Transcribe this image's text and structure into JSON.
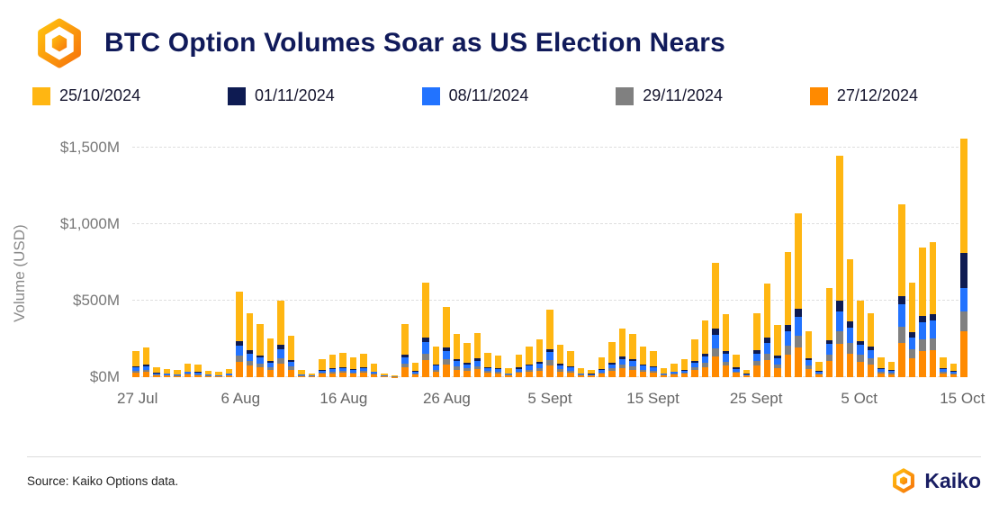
{
  "header": {
    "title": "BTC Option Volumes Soar as US Election Nears"
  },
  "icons": {
    "kaiko_logo": "hexagon-mark"
  },
  "colors": {
    "title": "#101A5A",
    "axis_text": "#777777",
    "gridline": "#dedede",
    "brand_orange": "#F7921E"
  },
  "legend": [
    {
      "label": "25/10/2024",
      "color": "#FFB612"
    },
    {
      "label": "01/11/2024",
      "color": "#0E1B52"
    },
    {
      "label": "08/11/2024",
      "color": "#2273FF"
    },
    {
      "label": "29/11/2024",
      "color": "#808080"
    },
    {
      "label": "27/12/2024",
      "color": "#FF8A00"
    }
  ],
  "chart_data": {
    "type": "bar",
    "stacked": true,
    "title": "BTC Option Volumes Soar as US Election Nears",
    "xlabel": "",
    "ylabel": "Volume (USD)",
    "ylim": [
      0,
      1600
    ],
    "grid": true,
    "legend_position": "top",
    "yticks": [
      {
        "value": 0,
        "label": "$0M"
      },
      {
        "value": 500,
        "label": "$500M"
      },
      {
        "value": 1000,
        "label": "$1,000M"
      },
      {
        "value": 1500,
        "label": "$1,500M"
      }
    ],
    "x_tick_labels": [
      "27 Jul",
      "6 Aug",
      "16 Aug",
      "26 Aug",
      "5 Sept",
      "15 Sept",
      "25 Sept",
      "5 Oct",
      "15 Oct"
    ],
    "x_tick_indices": [
      0,
      10,
      20,
      30,
      40,
      50,
      60,
      70,
      80
    ],
    "dates": [
      "27 Jul",
      "28 Jul",
      "29 Jul",
      "30 Jul",
      "31 Jul",
      "1 Aug",
      "2 Aug",
      "3 Aug",
      "4 Aug",
      "5 Aug",
      "6 Aug",
      "7 Aug",
      "8 Aug",
      "9 Aug",
      "10 Aug",
      "11 Aug",
      "12 Aug",
      "13 Aug",
      "14 Aug",
      "15 Aug",
      "16 Aug",
      "17 Aug",
      "18 Aug",
      "19 Aug",
      "20 Aug",
      "21 Aug",
      "22 Aug",
      "23 Aug",
      "24 Aug",
      "25 Aug",
      "26 Aug",
      "27 Aug",
      "28 Aug",
      "29 Aug",
      "30 Aug",
      "31 Aug",
      "1 Sept",
      "2 Sept",
      "3 Sept",
      "4 Sept",
      "5 Sept",
      "6 Sept",
      "7 Sept",
      "8 Sept",
      "9 Sept",
      "10 Sept",
      "11 Sept",
      "12 Sept",
      "13 Sept",
      "14 Sept",
      "15 Sept",
      "16 Sept",
      "17 Sept",
      "18 Sept",
      "19 Sept",
      "20 Sept",
      "21 Sept",
      "22 Sept",
      "23 Sept",
      "24 Sept",
      "25 Sept",
      "26 Sept",
      "27 Sept",
      "28 Sept",
      "29 Sept",
      "30 Sept",
      "1 Oct",
      "2 Oct",
      "3 Oct",
      "4 Oct",
      "5 Oct",
      "6 Oct",
      "7 Oct",
      "8 Oct",
      "9 Oct",
      "10 Oct",
      "11 Oct",
      "12 Oct",
      "13 Oct",
      "14 Oct",
      "15 Oct"
    ],
    "stack_order": "bottom_to_top",
    "series": [
      {
        "name": "27/12/2024",
        "color": "#FF8A00",
        "values": [
          31,
          35,
          12,
          10,
          8,
          16,
          14,
          7,
          6,
          10,
          101,
          76,
          62,
          46,
          90,
          49,
          8,
          5,
          22,
          26,
          29,
          23,
          28,
          16,
          5,
          3,
          63,
          17,
          112,
          36,
          83,
          50,
          41,
          52,
          29,
          25,
          11,
          27,
          36,
          44,
          79,
          38,
          31,
          11,
          9,
          23,
          41,
          58,
          50,
          36,
          31,
          11,
          16,
          22,
          45,
          67,
          135,
          74,
          27,
          9,
          76,
          110,
          61,
          148,
          193,
          54,
          18,
          104,
          220,
          154,
          100,
          84,
          26,
          20,
          226,
          124,
          170,
          176,
          26,
          18,
          300
        ]
      },
      {
        "name": "29/11/2024",
        "color": "#808080",
        "values": [
          12,
          14,
          5,
          4,
          3,
          6,
          6,
          3,
          2,
          4,
          39,
          29,
          24,
          18,
          35,
          19,
          3,
          2,
          8,
          10,
          11,
          9,
          11,
          6,
          2,
          1,
          25,
          7,
          43,
          14,
          32,
          20,
          16,
          20,
          11,
          10,
          4,
          11,
          14,
          17,
          31,
          15,
          12,
          4,
          4,
          9,
          16,
          22,
          20,
          14,
          12,
          4,
          6,
          8,
          18,
          26,
          53,
          29,
          11,
          4,
          29,
          43,
          24,
          57,
          75,
          21,
          7,
          41,
          80,
          69,
          45,
          38,
          12,
          9,
          102,
          56,
          77,
          79,
          12,
          8,
          130
        ]
      },
      {
        "name": "08/11/2024",
        "color": "#2273FF",
        "values": [
          20,
          23,
          8,
          7,
          5,
          11,
          10,
          5,
          4,
          7,
          67,
          50,
          41,
          31,
          60,
          32,
          5,
          3,
          14,
          17,
          19,
          16,
          19,
          11,
          3,
          2,
          42,
          11,
          74,
          24,
          55,
          34,
          27,
          35,
          19,
          17,
          7,
          18,
          24,
          29,
          53,
          25,
          20,
          7,
          6,
          16,
          28,
          38,
          34,
          24,
          20,
          7,
          11,
          14,
          30,
          44,
          90,
          49,
          18,
          6,
          50,
          73,
          41,
          98,
          128,
          36,
          12,
          70,
          130,
          100,
          65,
          55,
          17,
          13,
          147,
          81,
          111,
          114,
          17,
          12,
          150
        ]
      },
      {
        "name": "01/11/2024",
        "color": "#0E1B52",
        "values": [
          9,
          10,
          3,
          3,
          2,
          5,
          4,
          2,
          2,
          3,
          28,
          21,
          17,
          13,
          25,
          14,
          2,
          1,
          6,
          7,
          8,
          7,
          8,
          5,
          1,
          1,
          18,
          5,
          31,
          10,
          23,
          14,
          11,
          15,
          8,
          7,
          3,
          8,
          10,
          12,
          22,
          11,
          9,
          3,
          3,
          7,
          12,
          16,
          14,
          10,
          9,
          3,
          5,
          6,
          13,
          19,
          38,
          21,
          8,
          3,
          21,
          31,
          17,
          41,
          54,
          15,
          5,
          29,
          70,
          39,
          25,
          21,
          7,
          5,
          57,
          31,
          43,
          44,
          7,
          5,
          230
        ]
      },
      {
        "name": "25/10/2024",
        "color": "#FFB612",
        "values": [
          98,
          113,
          37,
          31,
          27,
          52,
          46,
          23,
          21,
          31,
          325,
          244,
          201,
          147,
          290,
          156,
          27,
          14,
          70,
          85,
          93,
          75,
          89,
          52,
          14,
          8,
          202,
          55,
          360,
          116,
          267,
          162,
          130,
          168,
          93,
          81,
          35,
          86,
          116,
          143,
          255,
          121,
          98,
          35,
          28,
          75,
          133,
          186,
          162,
          116,
          98,
          35,
          52,
          70,
          144,
          214,
          434,
          237,
          86,
          28,
          244,
          353,
          197,
          476,
          620,
          174,
          58,
          336,
          950,
          408,
          265,
          222,
          68,
          53,
          598,
          328,
          449,
          467,
          68,
          47,
          750
        ]
      }
    ]
  },
  "footer": {
    "source": "Source: Kaiko Options data.",
    "brand": "Kaiko"
  }
}
